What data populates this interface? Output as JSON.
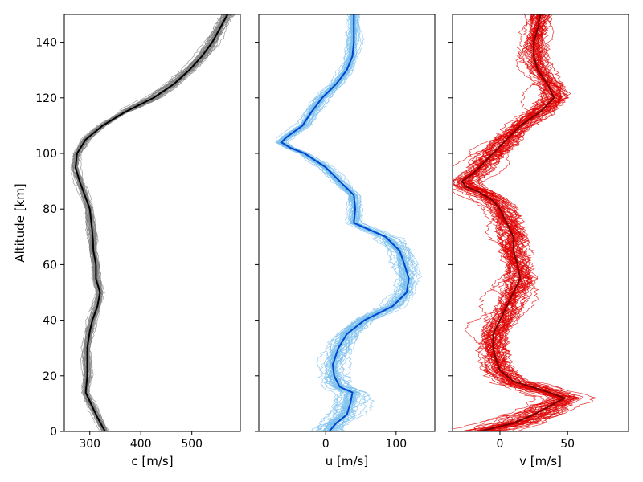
{
  "chart_data": [
    {
      "type": "line",
      "xlabel": "c [m/s]",
      "ylabel": "Altitude [km]",
      "xlim": [
        250,
        595
      ],
      "ylim": [
        0,
        150
      ],
      "xticks": [
        300,
        400,
        500
      ],
      "yticks": [
        0,
        20,
        40,
        60,
        80,
        100,
        120,
        140
      ],
      "colors": {
        "mean": "#000000",
        "members": "#808080"
      },
      "grid": false,
      "ensemble_members": 40,
      "mean": {
        "y": [
          0,
          5,
          10,
          14,
          20,
          30,
          36,
          40,
          45,
          50,
          55,
          60,
          65,
          70,
          75,
          80,
          85,
          90,
          95,
          100,
          105,
          110,
          115,
          120,
          125,
          130,
          135,
          140,
          145,
          150
        ],
        "x": [
          330,
          315,
          302,
          292,
          295,
          295,
          300,
          305,
          315,
          320,
          312,
          312,
          307,
          306,
          303,
          300,
          290,
          280,
          272,
          275,
          292,
          325,
          370,
          425,
          465,
          495,
          520,
          540,
          555,
          570
        ]
      }
    },
    {
      "type": "line",
      "xlabel": "u [m/s]",
      "xlim": [
        -95,
        155
      ],
      "ylim": [
        0,
        150
      ],
      "xticks": [
        0,
        100
      ],
      "colors": {
        "mean": "#0047cc",
        "members": "#7cc0ee"
      },
      "grid": false,
      "ensemble_members": 40,
      "mean": {
        "y": [
          0,
          3,
          6,
          10,
          14,
          16,
          20,
          24,
          30,
          35,
          40,
          45,
          50,
          55,
          60,
          65,
          70,
          75,
          80,
          85,
          90,
          95,
          100,
          102,
          104,
          106,
          110,
          115,
          120,
          125,
          130,
          135,
          140,
          145,
          150
        ],
        "x": [
          5,
          15,
          30,
          35,
          38,
          20,
          12,
          10,
          18,
          30,
          55,
          95,
          115,
          118,
          112,
          105,
          85,
          40,
          42,
          40,
          20,
          0,
          -30,
          -50,
          -63,
          -55,
          -33,
          -20,
          -5,
          15,
          30,
          38,
          40,
          40,
          40
        ]
      }
    },
    {
      "type": "line",
      "xlabel": "v [m/s]",
      "xlim": [
        -35,
        95
      ],
      "ylim": [
        0,
        150
      ],
      "xticks": [
        0,
        50
      ],
      "colors": {
        "mean": "#7a0000",
        "members": "#e00000"
      },
      "grid": false,
      "ensemble_members": 40,
      "mean": {
        "y": [
          0,
          3,
          6,
          10,
          12,
          15,
          18,
          22,
          26,
          30,
          35,
          40,
          45,
          50,
          55,
          60,
          65,
          70,
          75,
          80,
          83,
          86,
          88,
          90,
          92,
          95,
          100,
          105,
          110,
          115,
          120,
          125,
          130,
          135,
          140,
          145,
          150
        ],
        "x": [
          -15,
          10,
          25,
          40,
          48,
          30,
          10,
          0,
          -3,
          -5,
          -5,
          0,
          5,
          10,
          15,
          13,
          10,
          10,
          5,
          0,
          -5,
          -15,
          -25,
          -28,
          -22,
          -15,
          -5,
          5,
          15,
          30,
          40,
          35,
          28,
          25,
          25,
          28,
          30
        ]
      }
    }
  ]
}
